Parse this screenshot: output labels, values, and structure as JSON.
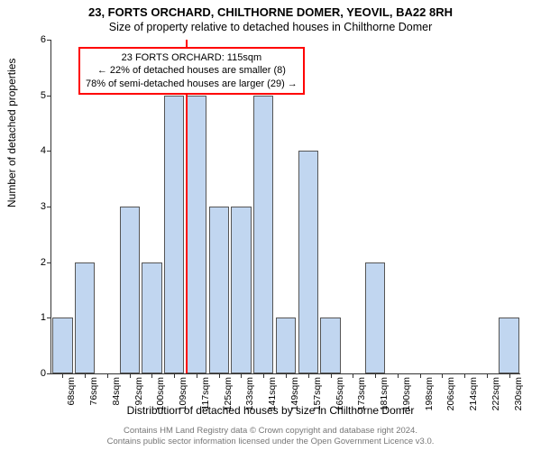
{
  "title_line1": "23, FORTS ORCHARD, CHILTHORNE DOMER, YEOVIL, BA22 8RH",
  "title_line2": "Size of property relative to detached houses in Chilthorne Domer",
  "ylabel": "Number of detached properties",
  "xlabel": "Distribution of detached houses by size in Chilthorne Domer",
  "footer_line1": "Contains HM Land Registry data © Crown copyright and database right 2024.",
  "footer_line2": "Contains public sector information licensed under the Open Government Licence v3.0.",
  "chart": {
    "type": "bar",
    "ylim": [
      0,
      6
    ],
    "ytick_step": 1,
    "bar_fill": "#c1d6f0",
    "bar_border": "#555555",
    "highlight_color": "#ff0000",
    "legend_border": "#ff0000",
    "background": "#ffffff",
    "categories": [
      "68sqm",
      "76sqm",
      "84sqm",
      "92sqm",
      "100sqm",
      "109sqm",
      "117sqm",
      "125sqm",
      "133sqm",
      "141sqm",
      "149sqm",
      "157sqm",
      "165sqm",
      "173sqm",
      "181sqm",
      "190sqm",
      "198sqm",
      "206sqm",
      "214sqm",
      "222sqm",
      "230sqm"
    ],
    "values": [
      1,
      2,
      0,
      3,
      2,
      5,
      5,
      3,
      3,
      5,
      1,
      4,
      1,
      0,
      2,
      0,
      0,
      0,
      0,
      0,
      1
    ],
    "highlight_category_index": 6,
    "bar_width_ratio": 0.9,
    "legend": {
      "line1": "23 FORTS ORCHARD: 115sqm",
      "line2": "← 22% of detached houses are smaller (8)",
      "line3": "78% of semi-detached houses are larger (29) →"
    }
  }
}
